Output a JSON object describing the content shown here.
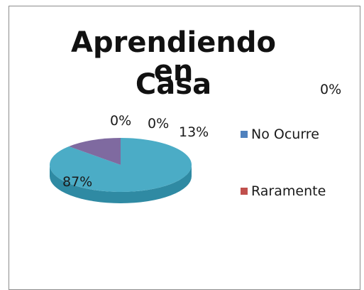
{
  "chart_data": {
    "type": "pie",
    "title_lines": [
      "Aprendiendo en",
      "Casa"
    ],
    "slices": [
      {
        "name": "No Ocurre",
        "value": 87,
        "label": "87%",
        "color": "#4bacc6",
        "side": "#2f8aa3",
        "legend_color": "#4f81bd"
      },
      {
        "name": "Raramente",
        "value": 13,
        "label": "13%",
        "color": "#7f6aa0",
        "side": "#5f4c80",
        "legend_color": "#c0504d"
      },
      {
        "name": "",
        "value": 0,
        "label": "0%"
      },
      {
        "name": "",
        "value": 0,
        "label": "0%"
      },
      {
        "name": "",
        "value": 0,
        "label": "0%"
      }
    ],
    "legend": [
      "No Ocurre",
      "Raramente"
    ],
    "legend_position": "right"
  }
}
